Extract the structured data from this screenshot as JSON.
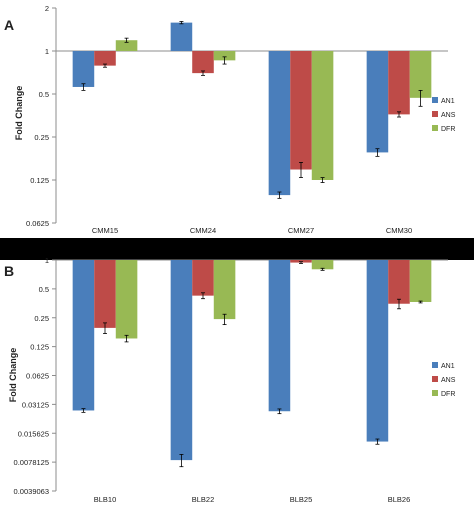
{
  "colors": {
    "background": "#000000",
    "panel": "#ffffff",
    "axis": "#8c8c8c",
    "text": "#222222",
    "series": [
      "#4a7ebb",
      "#be4b48",
      "#98b954"
    ],
    "errorbar": "#000000"
  },
  "chart_data": [
    {
      "type": "bar",
      "panel_label": "A",
      "title": "",
      "xlabel": "",
      "ylabel": "Fold Change",
      "yscale": "log2",
      "ylim": [
        0.0625,
        2
      ],
      "yticks": [
        "0.0625",
        "0.125",
        "0.25",
        "0.5",
        "1",
        "2"
      ],
      "yticks_values": [
        0.0625,
        0.125,
        0.25,
        0.5,
        1,
        2
      ],
      "baseline": 1,
      "categories": [
        "CMM15",
        "CMM24",
        "CMM27",
        "CMM30"
      ],
      "legend_position": "right",
      "series": [
        {
          "name": "AN1",
          "values": [
            0.56,
            1.58,
            0.098,
            0.195
          ],
          "errors": [
            0.03,
            0.03,
            0.005,
            0.012
          ]
        },
        {
          "name": "ANS",
          "values": [
            0.79,
            0.7,
            0.148,
            0.36
          ],
          "errors": [
            0.02,
            0.025,
            0.018,
            0.015
          ]
        },
        {
          "name": "DFR",
          "values": [
            1.19,
            0.86,
            0.125,
            0.47
          ],
          "errors": [
            0.04,
            0.05,
            0.005,
            0.06
          ]
        }
      ]
    },
    {
      "type": "bar",
      "panel_label": "B",
      "title": "",
      "xlabel": "",
      "ylabel": "Fold Change",
      "yscale": "log2",
      "ylim": [
        0.0039063,
        1
      ],
      "yticks": [
        "0.0039063",
        "0.0078125",
        "0.015625",
        "0.03125",
        "0.0625",
        "0.125",
        "0.25",
        "0.5",
        "1"
      ],
      "yticks_values": [
        0.0039063,
        0.0078125,
        0.015625,
        0.03125,
        0.0625,
        0.125,
        0.25,
        0.5,
        1
      ],
      "baseline": 1,
      "categories": [
        "BLB10",
        "BLB22",
        "BLB25",
        "BLB26"
      ],
      "legend_position": "right",
      "series": [
        {
          "name": "AN1",
          "values": [
            0.027,
            0.0082,
            0.0265,
            0.0128
          ],
          "errors": [
            0.0012,
            0.0012,
            0.0015,
            0.0008
          ]
        },
        {
          "name": "ANS",
          "values": [
            0.196,
            0.425,
            0.94,
            0.35
          ],
          "errors": [
            0.025,
            0.03,
            0.02,
            0.04
          ]
        },
        {
          "name": "DFR",
          "values": [
            0.152,
            0.242,
            0.8,
            0.365
          ],
          "errors": [
            0.012,
            0.03,
            0.02,
            0.008
          ]
        }
      ]
    }
  ]
}
